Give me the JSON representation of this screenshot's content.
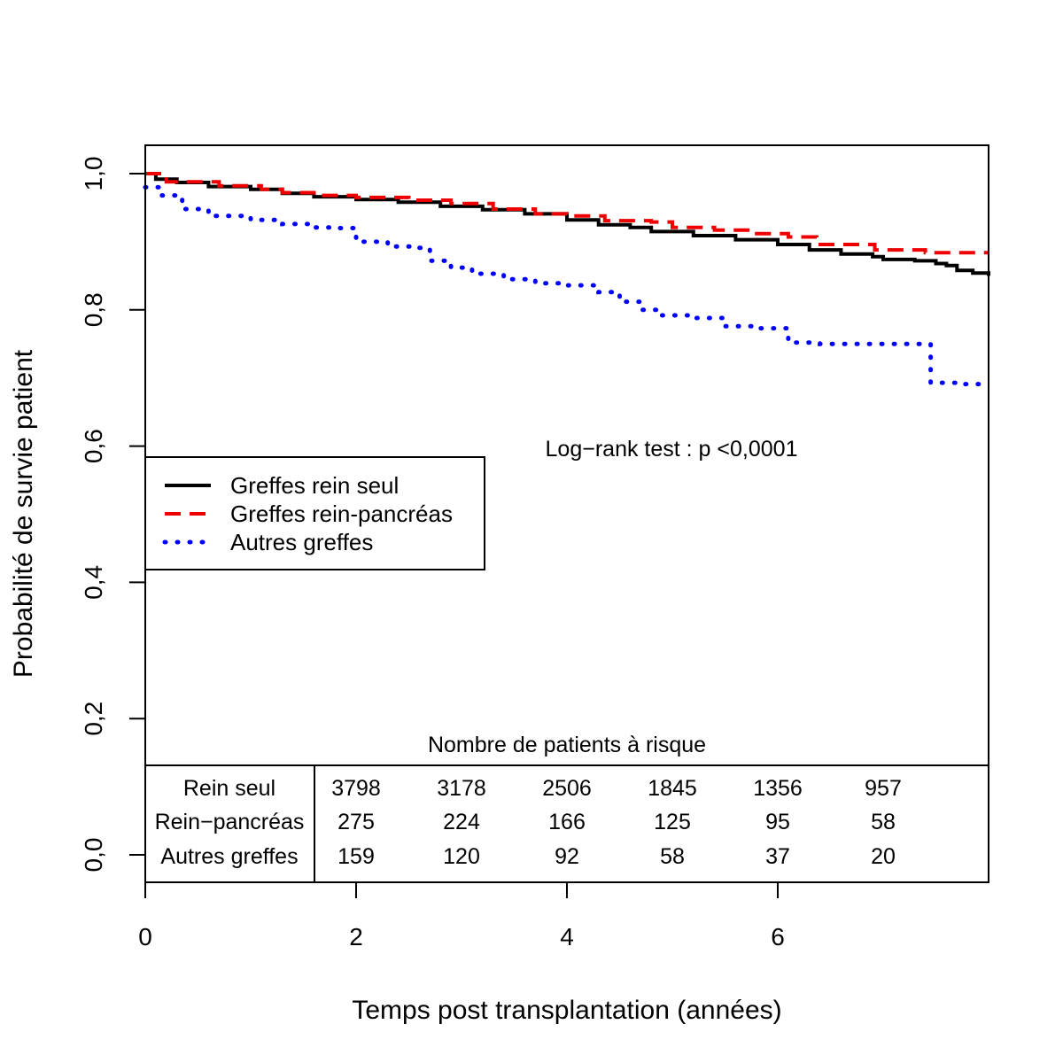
{
  "chart_data": {
    "type": "line",
    "xlabel": "Temps post transplantation (années)",
    "ylabel": "Probabilité de survie patient",
    "xlim": [
      0,
      8
    ],
    "ylim": [
      0,
      1
    ],
    "x_ticks": [
      0,
      2,
      4,
      6
    ],
    "x_tick_labels": [
      "0",
      "2",
      "4",
      "6"
    ],
    "y_ticks": [
      0,
      0.2,
      0.4,
      0.6,
      0.8,
      1.0
    ],
    "y_tick_labels": [
      "0,0",
      "0,2",
      "0,4",
      "0,6",
      "0,8",
      "1,0"
    ],
    "annotation": "Log−rank test : p <0,0001",
    "legend_position": "left",
    "series": [
      {
        "name": "Greffes rein seul",
        "color": "#000000",
        "style": "solid",
        "points": [
          [
            0,
            1.0
          ],
          [
            0.1,
            0.992
          ],
          [
            0.3,
            0.987
          ],
          [
            0.6,
            0.981
          ],
          [
            1.0,
            0.977
          ],
          [
            1.3,
            0.971
          ],
          [
            1.6,
            0.966
          ],
          [
            2.0,
            0.962
          ],
          [
            2.4,
            0.958
          ],
          [
            2.8,
            0.952
          ],
          [
            3.2,
            0.947
          ],
          [
            3.6,
            0.941
          ],
          [
            4.0,
            0.932
          ],
          [
            4.3,
            0.925
          ],
          [
            4.6,
            0.921
          ],
          [
            4.8,
            0.915
          ],
          [
            5.2,
            0.909
          ],
          [
            5.6,
            0.903
          ],
          [
            6.0,
            0.896
          ],
          [
            6.3,
            0.888
          ],
          [
            6.6,
            0.882
          ],
          [
            6.9,
            0.878
          ],
          [
            7.0,
            0.874
          ],
          [
            7.3,
            0.872
          ],
          [
            7.5,
            0.868
          ],
          [
            7.6,
            0.865
          ],
          [
            7.7,
            0.858
          ],
          [
            7.85,
            0.854
          ],
          [
            8.0,
            0.85
          ]
        ]
      },
      {
        "name": "Greffes rein-pancréas",
        "color": "#ee0000",
        "style": "dashed",
        "points": [
          [
            0,
            1.0
          ],
          [
            0.2,
            0.988
          ],
          [
            0.7,
            0.982
          ],
          [
            1.1,
            0.977
          ],
          [
            1.3,
            0.972
          ],
          [
            1.6,
            0.968
          ],
          [
            2.0,
            0.965
          ],
          [
            2.5,
            0.961
          ],
          [
            2.9,
            0.956
          ],
          [
            3.3,
            0.948
          ],
          [
            3.7,
            0.941
          ],
          [
            4.0,
            0.938
          ],
          [
            4.35,
            0.938
          ],
          [
            4.36,
            0.931
          ],
          [
            4.8,
            0.929
          ],
          [
            5.0,
            0.921
          ],
          [
            5.4,
            0.917
          ],
          [
            5.8,
            0.912
          ],
          [
            6.1,
            0.907
          ],
          [
            6.35,
            0.907
          ],
          [
            6.37,
            0.896
          ],
          [
            6.9,
            0.896
          ],
          [
            6.92,
            0.888
          ],
          [
            7.4,
            0.884
          ],
          [
            8.0,
            0.884
          ]
        ]
      },
      {
        "name": "Autres greffes",
        "color": "#0000ff",
        "style": "dotted",
        "points": [
          [
            0,
            0.98
          ],
          [
            0.15,
            0.968
          ],
          [
            0.35,
            0.948
          ],
          [
            0.6,
            0.938
          ],
          [
            1.0,
            0.932
          ],
          [
            1.3,
            0.926
          ],
          [
            1.6,
            0.921
          ],
          [
            1.8,
            0.92
          ],
          [
            2.0,
            0.9
          ],
          [
            2.3,
            0.893
          ],
          [
            2.6,
            0.891
          ],
          [
            2.7,
            0.872
          ],
          [
            2.9,
            0.862
          ],
          [
            3.1,
            0.853
          ],
          [
            3.4,
            0.845
          ],
          [
            3.7,
            0.839
          ],
          [
            4.0,
            0.836
          ],
          [
            4.3,
            0.826
          ],
          [
            4.5,
            0.812
          ],
          [
            4.7,
            0.8
          ],
          [
            4.9,
            0.792
          ],
          [
            5.2,
            0.788
          ],
          [
            5.5,
            0.776
          ],
          [
            5.8,
            0.773
          ],
          [
            6.1,
            0.752
          ],
          [
            6.4,
            0.75
          ],
          [
            6.8,
            0.75
          ],
          [
            7.2,
            0.75
          ],
          [
            7.4,
            0.75
          ],
          [
            7.45,
            0.693
          ],
          [
            7.7,
            0.691
          ],
          [
            7.95,
            0.691
          ]
        ]
      }
    ],
    "risk_table": {
      "title": "Nombre de patients à risque",
      "times": [
        2,
        3,
        4,
        5,
        6,
        7
      ],
      "rows": [
        {
          "label": "Rein seul",
          "values": [
            "3798",
            "3178",
            "2506",
            "1845",
            "1356",
            "957"
          ]
        },
        {
          "label": "Rein−pancréas",
          "values": [
            "275",
            "224",
            "166",
            "125",
            "95",
            "58"
          ]
        },
        {
          "label": "Autres greffes",
          "values": [
            "159",
            "120",
            "92",
            "58",
            "37",
            "20"
          ]
        }
      ]
    }
  }
}
